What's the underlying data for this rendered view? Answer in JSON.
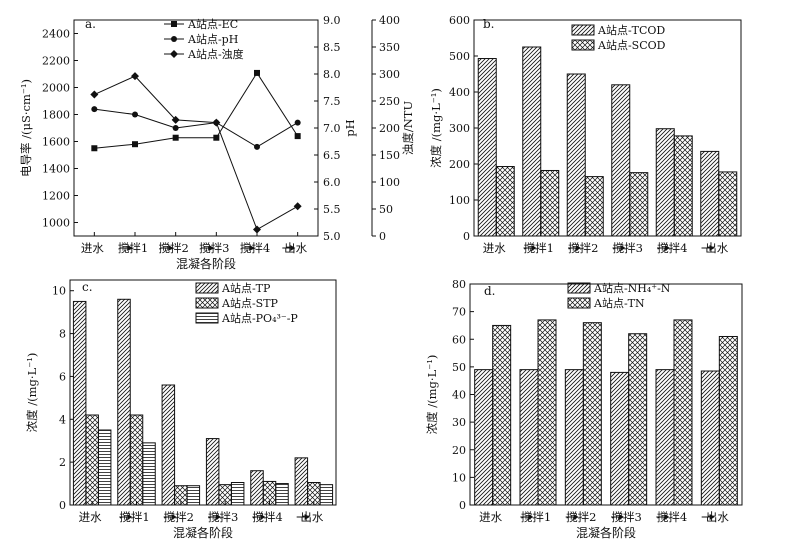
{
  "chart_data": [
    {
      "id": "a",
      "panel_label": "a.",
      "type": "line",
      "categories": [
        "进水",
        "搅拌1",
        "搅拌2",
        "搅拌3",
        "搅拌4",
        "出水"
      ],
      "xlabel": "混凝各阶段",
      "axes": {
        "left": {
          "label": "电导率 /(μS·cm⁻¹)",
          "lim": [
            900,
            2500
          ],
          "ticks": [
            "1000",
            "1200",
            "1400",
            "1600",
            "1800",
            "2000",
            "2200",
            "2400"
          ]
        },
        "right_pH": {
          "label": "pH",
          "lim": [
            5.0,
            9.0
          ],
          "ticks": [
            "5.0",
            "5.5",
            "6.0",
            "6.5",
            "7.0",
            "7.5",
            "8.0",
            "8.5",
            "9.0"
          ]
        },
        "right_turb": {
          "label": "浊度/NTU",
          "lim": [
            0,
            400
          ],
          "ticks": [
            "0",
            "50",
            "100",
            "150",
            "200",
            "250",
            "300",
            "350",
            "400"
          ]
        }
      },
      "series": [
        {
          "name": "A站点-EC",
          "axis": "left",
          "marker": "square",
          "values": [
            1550,
            1580,
            1628,
            1628,
            2108,
            1640
          ]
        },
        {
          "name": "A站点-pH",
          "axis": "right_pH",
          "marker": "circle",
          "values": [
            7.35,
            7.25,
            7.0,
            7.1,
            6.65,
            7.1
          ]
        },
        {
          "name": "A站点-浊度",
          "axis": "right_turb",
          "marker": "diamond",
          "values": [
            262,
            296,
            215,
            210,
            12,
            55
          ]
        }
      ]
    },
    {
      "id": "b",
      "panel_label": "b.",
      "type": "bar",
      "categories": [
        "进水",
        "搅拌1",
        "搅拌2",
        "搅拌3",
        "搅拌4",
        "出水"
      ],
      "xlabel": "",
      "ylabel": "浓度 /(mg·L⁻¹)",
      "ylim": [
        0,
        600
      ],
      "yticks": [
        "0",
        "100",
        "200",
        "300",
        "400",
        "500",
        "600"
      ],
      "series": [
        {
          "name": "A站点-TCOD",
          "pattern": "diag",
          "values": [
            493,
            525,
            450,
            420,
            298,
            235
          ]
        },
        {
          "name": "A站点-SCOD",
          "pattern": "cross",
          "values": [
            193,
            182,
            165,
            176,
            278,
            178
          ]
        }
      ]
    },
    {
      "id": "c",
      "panel_label": "c.",
      "type": "bar",
      "categories": [
        "进水",
        "搅拌1",
        "搅拌2",
        "搅拌3",
        "搅拌4",
        "出水"
      ],
      "xlabel": "混凝各阶段",
      "ylabel": "浓度 /(mg·L⁻¹)",
      "ylim": [
        0,
        10.5
      ],
      "yticks": [
        "0",
        "2",
        "4",
        "6",
        "8",
        "10"
      ],
      "series": [
        {
          "name": "A站点-TP",
          "pattern": "diag",
          "values": [
            9.5,
            9.6,
            5.6,
            3.1,
            1.6,
            2.2
          ]
        },
        {
          "name": "A站点-STP",
          "pattern": "cross",
          "values": [
            4.2,
            4.2,
            0.9,
            0.95,
            1.1,
            1.05
          ]
        },
        {
          "name": "A站点-PO₄³⁻-P",
          "pattern": "hline",
          "values": [
            3.5,
            2.9,
            0.9,
            1.05,
            1.0,
            0.95
          ]
        }
      ]
    },
    {
      "id": "d",
      "panel_label": "d.",
      "type": "bar",
      "categories": [
        "进水",
        "搅拌1",
        "搅拌2",
        "搅拌3",
        "搅拌4",
        "出水"
      ],
      "xlabel": "混凝各阶段",
      "ylabel": "浓度 /(mg·L⁻¹)",
      "ylim": [
        0,
        80
      ],
      "yticks": [
        "0",
        "10",
        "20",
        "30",
        "40",
        "50",
        "60",
        "70",
        "80"
      ],
      "series": [
        {
          "name": "A站点-NH₄⁺-N",
          "pattern": "diag",
          "values": [
            49,
            49,
            49,
            48,
            49,
            48.5
          ]
        },
        {
          "name": "A站点-TN",
          "pattern": "cross",
          "values": [
            65,
            67,
            66,
            62,
            67,
            61
          ]
        }
      ]
    }
  ]
}
